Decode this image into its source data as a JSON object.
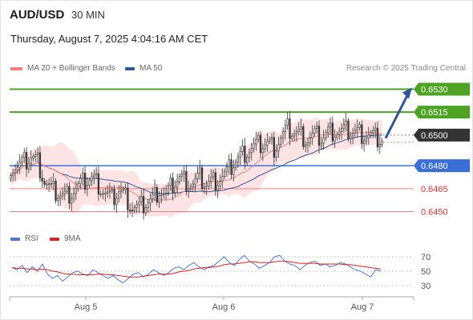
{
  "header": {
    "symbol": "AUD/USD",
    "timeframe": "30 MIN",
    "datetime": "Thursday, August 7, 2025 4:04:16 AM CET"
  },
  "legend": {
    "ma20_label": "MA 20 + Bollinger Bands",
    "ma50_label": "MA 50",
    "rsi_label": "RSI",
    "rsi_ma_label": "9MA",
    "copyright": "Research © 2025 Trading Central"
  },
  "colors": {
    "resistance": "#4ea324",
    "pivot": "#333333",
    "support_primary": "#3a6fd8",
    "support_secondary": "#f08080",
    "ma20": "#f08080",
    "ma50": "#2f5597",
    "bollinger_fill": "#fddede",
    "candle_up": "#3a3a3a",
    "candle_down": "#3a3a3a",
    "arrow": "#2f5597",
    "rsi": "#4a78d8",
    "rsi_ma": "#e02020"
  },
  "chart_data": [
    {
      "type": "candlestick",
      "title": "AUD/USD 30 MIN",
      "x_ticks": [
        "Aug 5",
        "Aug 6",
        "Aug 7"
      ],
      "ylim": [
        0.6444,
        0.6536
      ],
      "levels": [
        {
          "label": "0.6530",
          "value": 0.653,
          "kind": "resistance"
        },
        {
          "label": "0.6515",
          "value": 0.6515,
          "kind": "resistance"
        },
        {
          "label": "0.6500",
          "value": 0.65,
          "kind": "pivot"
        },
        {
          "label": "0.6480",
          "value": 0.648,
          "kind": "support_primary"
        },
        {
          "label": "0.6465",
          "value": 0.6465,
          "kind": "support_secondary"
        },
        {
          "label": "0.6450",
          "value": 0.645,
          "kind": "support_secondary"
        }
      ],
      "price_anchors": [
        [
          0,
          0.648
        ],
        [
          3,
          0.6479
        ],
        [
          6,
          0.6482
        ],
        [
          9,
          0.6486
        ],
        [
          12,
          0.6483
        ],
        [
          15,
          0.647
        ],
        [
          18,
          0.6464
        ],
        [
          21,
          0.6462
        ],
        [
          24,
          0.646
        ],
        [
          27,
          0.6463
        ],
        [
          30,
          0.6466
        ],
        [
          33,
          0.647
        ],
        [
          36,
          0.6472
        ],
        [
          39,
          0.6468
        ],
        [
          42,
          0.6462
        ],
        [
          45,
          0.6458
        ],
        [
          48,
          0.6464
        ],
        [
          51,
          0.646
        ],
        [
          54,
          0.6453
        ],
        [
          57,
          0.6452
        ],
        [
          60,
          0.6456
        ],
        [
          63,
          0.6458
        ],
        [
          66,
          0.6465
        ],
        [
          69,
          0.646
        ],
        [
          72,
          0.6468
        ],
        [
          75,
          0.6472
        ],
        [
          78,
          0.647
        ],
        [
          81,
          0.6468
        ],
        [
          84,
          0.6472
        ],
        [
          87,
          0.6468
        ],
        [
          90,
          0.647
        ],
        [
          93,
          0.6472
        ],
        [
          96,
          0.6475
        ],
        [
          99,
          0.6482
        ],
        [
          102,
          0.6486
        ],
        [
          105,
          0.649
        ],
        [
          108,
          0.6492
        ],
        [
          111,
          0.6494
        ],
        [
          114,
          0.6495
        ],
        [
          117,
          0.6492
        ],
        [
          120,
          0.6498
        ],
        [
          123,
          0.6504
        ],
        [
          126,
          0.6502
        ],
        [
          129,
          0.65
        ],
        [
          132,
          0.6497
        ],
        [
          135,
          0.65
        ],
        [
          138,
          0.6498
        ],
        [
          141,
          0.6502
        ],
        [
          144,
          0.6503
        ],
        [
          147,
          0.6502
        ],
        [
          150,
          0.6503
        ],
        [
          153,
          0.6502
        ],
        [
          156,
          0.6501
        ],
        [
          159,
          0.65
        ],
        [
          162,
          0.6498
        ],
        [
          165,
          0.6497
        ]
      ],
      "projection": {
        "from": 0.6498,
        "to": 0.653
      }
    },
    {
      "type": "line",
      "title": "RSI",
      "ylim": [
        20,
        80
      ],
      "y_ticks": [
        30,
        50,
        70
      ],
      "series": [
        {
          "name": "RSI",
          "values": [
            55,
            52,
            58,
            48,
            56,
            50,
            60,
            46,
            40,
            44,
            36,
            42,
            48,
            50,
            46,
            44,
            52,
            48,
            44,
            40,
            44,
            38,
            34,
            40,
            46,
            48,
            42,
            46,
            52,
            48,
            44,
            48,
            54,
            56,
            52,
            58,
            62,
            56,
            52,
            56,
            58,
            64,
            70,
            62,
            58,
            66,
            72,
            64,
            60,
            54,
            58,
            62,
            70,
            72,
            64,
            60,
            58,
            52,
            58,
            62,
            64,
            58,
            60,
            56,
            58,
            62,
            60,
            56,
            52,
            50,
            46,
            42,
            52,
            50
          ]
        },
        {
          "name": "9MA",
          "values": [
            55,
            54,
            54,
            53,
            53,
            52,
            53,
            52,
            50,
            49,
            47,
            46,
            46,
            45,
            45,
            45,
            45,
            46,
            46,
            45,
            45,
            44,
            43,
            42,
            42,
            42,
            43,
            44,
            45,
            46,
            46,
            46,
            47,
            49,
            50,
            51,
            53,
            54,
            55,
            55,
            56,
            57,
            59,
            60,
            60,
            61,
            62,
            63,
            63,
            62,
            62,
            62,
            63,
            64,
            64,
            63,
            62,
            61,
            61,
            61,
            61,
            60,
            60,
            60,
            60,
            60,
            59,
            59,
            58,
            57,
            56,
            55,
            54,
            53
          ]
        }
      ]
    }
  ]
}
